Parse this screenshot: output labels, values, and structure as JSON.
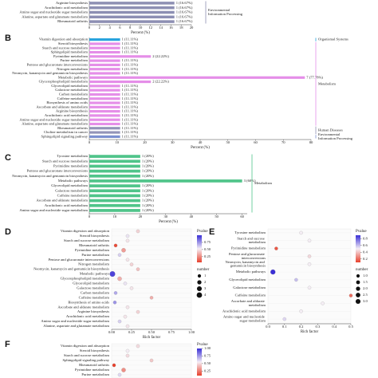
{
  "chart_data": [
    {
      "type": "bar",
      "orientation": "horizontal",
      "categories": [
        "Arginine biosynthesis",
        "Arachidonic acid metabolism",
        "Amino sugar and nucleotide sugar metabolism",
        "Alanine, aspartate and glutamate metabolism",
        "Rheumatoid arthritis"
      ],
      "series": [
        {
          "name": "Environmental Information Processing",
          "color": "#8d8fb3",
          "values": [
            16.67,
            16.67,
            16.67,
            16.67,
            16.67
          ],
          "value_labels": [
            "1 (16.67%)",
            "1 (16.67%)",
            "1 (16.67%)",
            "1 (16.67%)",
            "1 (16.67%)"
          ]
        }
      ],
      "xlim": [
        0,
        20
      ],
      "xticks": [
        0,
        2,
        4,
        6,
        8,
        10,
        12,
        14,
        16,
        18,
        20
      ],
      "xlabel": "Percent (%)"
    },
    {
      "type": "bar",
      "orientation": "horizontal",
      "title": "B",
      "categories": [
        "Vitamin digestion and absorption",
        "Steroid biosynthesis",
        "Starch and sucrose metabolism",
        "Sphingolipid metabolism",
        "Pyrimidine metabolism",
        "Purine metabolism",
        "Pentose and glucuronate interconversions",
        "Nitrogen metabolism",
        "Neomycin, kanamycin and gentamicin biosynthesis",
        "Metabolic pathways",
        "Glycerophospholipid metabolism",
        "Glycerolipid metabolism",
        "Galactose metabolism",
        "Carbon metabolism",
        "Caffeine metabolism",
        "Biosynthesis of amino acids",
        "Ascorbate and aldarate metabolism",
        "Arginine biosynthesis",
        "Arachidonic acid metabolism",
        "Amino sugar and nucleotide sugar metabolism",
        "Alanine, aspartate and glutamate metabolism",
        "Rheumatoid arthritis",
        "Choline metabolism in cancer",
        "Sphingolipid signaling pathway"
      ],
      "series": [
        {
          "name": "Organismal Systems",
          "color": "#27a3dd",
          "values": [
            11.11,
            null,
            null,
            null,
            null,
            null,
            null,
            null,
            null,
            null,
            null,
            null,
            null,
            null,
            null,
            null,
            null,
            null,
            null,
            null,
            null,
            null,
            null,
            null
          ],
          "value_labels": [
            "1 (11.11%)",
            null,
            null,
            null,
            null,
            null,
            null,
            null,
            null,
            null,
            null,
            null,
            null,
            null,
            null,
            null,
            null,
            null,
            null,
            null,
            null,
            null,
            null,
            null
          ]
        },
        {
          "name": "Metabolism",
          "color": "#e58ee8",
          "values": [
            null,
            11.11,
            11.11,
            11.11,
            22.22,
            11.11,
            11.11,
            11.11,
            11.11,
            77.78,
            22.22,
            11.11,
            11.11,
            11.11,
            11.11,
            11.11,
            11.11,
            11.11,
            11.11,
            11.11,
            11.11,
            null,
            null,
            null
          ],
          "value_labels": [
            null,
            "1 (11.11%)",
            "1 (11.11%)",
            "1 (11.11%)",
            "2 (22.22%)",
            "1 (11.11%)",
            "1 (11.11%)",
            "1 (11.11%)",
            "1 (11.11%)",
            "7 (77.78%)",
            "2 (22.22%)",
            "1 (11.11%)",
            "1 (11.11%)",
            "1 (11.11%)",
            "1 (11.11%)",
            "1 (11.11%)",
            "1 (11.11%)",
            "1 (11.11%)",
            "1 (11.11%)",
            "1 (11.11%)",
            "1 (11.11%)",
            null,
            null,
            null
          ]
        },
        {
          "name": "Human Diseases",
          "color": "#9394b8",
          "values": [
            null,
            null,
            null,
            null,
            null,
            null,
            null,
            null,
            null,
            null,
            null,
            null,
            null,
            null,
            null,
            null,
            null,
            null,
            null,
            null,
            null,
            11.11,
            11.11,
            null
          ],
          "value_labels": [
            null,
            null,
            null,
            null,
            null,
            null,
            null,
            null,
            null,
            null,
            null,
            null,
            null,
            null,
            null,
            null,
            null,
            null,
            null,
            null,
            null,
            "1 (11.11%)",
            "1 (11.11%)",
            null
          ]
        },
        {
          "name": "Environmental Information Processing",
          "color": "#7b8fd0",
          "values": [
            null,
            null,
            null,
            null,
            null,
            null,
            null,
            null,
            null,
            null,
            null,
            null,
            null,
            null,
            null,
            null,
            null,
            null,
            null,
            null,
            null,
            null,
            null,
            11.11
          ],
          "value_labels": [
            null,
            null,
            null,
            null,
            null,
            null,
            null,
            null,
            null,
            null,
            null,
            null,
            null,
            null,
            null,
            null,
            null,
            null,
            null,
            null,
            null,
            null,
            null,
            "1 (11.11%)"
          ]
        }
      ],
      "xlim": [
        0,
        80
      ],
      "xticks": [
        0,
        10,
        20,
        30,
        40,
        50,
        60,
        70,
        80
      ],
      "xlabel": "Percent (%)"
    },
    {
      "type": "bar",
      "orientation": "horizontal",
      "title": "C",
      "categories": [
        "Tyrosine metabolism",
        "Starch and sucrose metabolism",
        "Pyrimidine metabolism",
        "Pentose and glucuronate interconversions",
        "Neomycin, kanamycin and gentamicin biosynthesis",
        "Metabolic pathways",
        "Glycerolipid metabolism",
        "Galactose metabolism",
        "Caffeine metabolism",
        "Ascorbate and aldarate metabolism",
        "Arachidonic acid metabolism",
        "Amino sugar and nucleotide sugar metabolism"
      ],
      "series": [
        {
          "name": "Metabolism",
          "color": "#50c48a",
          "values": [
            20,
            20,
            20,
            20,
            20,
            60,
            20,
            20,
            20,
            20,
            20,
            20
          ],
          "value_labels": [
            "1 (20%)",
            "1 (20%)",
            "1 (20%)",
            "1 (20%)",
            "1 (20%)",
            "3 (60%)",
            "1 (20%)",
            "1 (20%)",
            "1 (20%)",
            "1 (20%)",
            "1 (20%)",
            "1 (20%)"
          ]
        }
      ],
      "xlim": [
        0,
        62
      ],
      "xticks": [
        0,
        10,
        20,
        30,
        40,
        50,
        60
      ],
      "xlabel": "Percent (%)"
    },
    {
      "type": "bubble",
      "title": "D",
      "categories": [
        "Vitamin digestion and absorption",
        "Steroid biosynthesis",
        "Starch and sucrose metabolism",
        "Rheumatoid arthritis",
        "Pyrimidine metabolism",
        "Purine metabolism",
        "Pentose and glucuronate interconversions",
        "Nitrogen metabolism",
        "Neomycin, kanamycin and gentamicin biosynthesis",
        "Metabolic pathways",
        "Glycerophospholipid metabolism",
        "Glycerolipid metabolism",
        "Galactose metabolism",
        "Carbon metabolism",
        "Caffeine metabolism",
        "Biosynthesis of amino acids",
        "Ascorbate and aldarate metabolism",
        "Arginine biosynthesis",
        "Arachidonic acid metabolism",
        "Amino sugar and nucleotide sugar metabolism",
        "Alanine, aspartate and glutamate metabolism"
      ],
      "x": [
        0.33,
        0.2,
        0.2,
        0.05,
        0.15,
        0.1,
        0.2,
        0.25,
        0.33,
        0.01,
        0.1,
        0.17,
        0.25,
        0.05,
        0.5,
        0.04,
        0.2,
        0.33,
        0.17,
        0.1,
        0.2
      ],
      "sizes": [
        1,
        1,
        1,
        1,
        2,
        1,
        1,
        1,
        1,
        4,
        2,
        1,
        1,
        1,
        1,
        1,
        1,
        1,
        1,
        1,
        1
      ],
      "pvalues": [
        0.45,
        0.55,
        0.5,
        0.08,
        0.3,
        0.6,
        0.5,
        0.45,
        0.4,
        0.95,
        0.35,
        0.55,
        0.5,
        0.7,
        0.35,
        0.75,
        0.5,
        0.45,
        0.5,
        0.6,
        0.5
      ],
      "xlim": [
        0,
        1
      ],
      "xticks": [
        {
          "value": 0,
          "label": "0.00"
        },
        0.25,
        {
          "value": 0.5,
          "label": "0.50"
        },
        0.75,
        {
          "value": 1,
          "label": "1.00"
        }
      ],
      "xlabel": "Rich factor",
      "pvalue_title": "Pvalue",
      "pvalue_lim": [
        0.05,
        1
      ],
      "pvalue_ticks": [
        0.75,
        {
          "value": 0.5,
          "label": "0.50"
        },
        0.25
      ],
      "size_title": "number",
      "size_ticks": [
        1,
        2,
        3,
        4
      ]
    },
    {
      "type": "bubble",
      "title": "E",
      "categories": [
        "Tyrosine metabolism",
        "Starch and sucrose metabolism",
        "Pyrimidine metabolism",
        "Pentose and glucuronate interconversions",
        "Neomycin, kanamycin and gentamicin biosynthesis",
        "Metabolic pathways",
        "Glycerolipid metabolism",
        "Galactose metabolism",
        "Caffeine metabolism",
        "Ascorbate and aldarate metabolism",
        "Arachidonic acid metabolism",
        "Amino sugar and nucleotide sugar metabolism"
      ],
      "x": [
        0.2,
        0.25,
        0.05,
        0.25,
        0.25,
        0.03,
        0.17,
        0.25,
        0.5,
        0.33,
        0.2,
        0.1
      ],
      "sizes": [
        1,
        1,
        1,
        1,
        1,
        3,
        1,
        1,
        1,
        1,
        1,
        1
      ],
      "pvalues": [
        0.5,
        0.5,
        0.15,
        0.45,
        0.5,
        0.9,
        0.6,
        0.5,
        0.2,
        0.5,
        0.5,
        0.55
      ],
      "xlim": [
        0,
        0.5
      ],
      "xticks": [
        {
          "value": 0,
          "label": "0.0"
        },
        0.1,
        0.2,
        0.3,
        0.4,
        0.5
      ],
      "xlabel": "Rich factor",
      "pvalue_title": "Pvalue",
      "pvalue_lim": [
        0.1,
        0.9
      ],
      "pvalue_ticks": [
        0.8,
        0.6,
        0.4,
        0.2
      ],
      "size_title": "number",
      "size_ticks": [
        {
          "value": 1,
          "label": "1.0"
        },
        1.5,
        {
          "value": 2,
          "label": "2.0"
        },
        2.5,
        {
          "value": 3,
          "label": "3.0"
        }
      ]
    },
    {
      "type": "bubble",
      "title": "F",
      "categories": [
        "Vitamin digestion and absorption",
        "Steroid biosynthesis",
        "Starch and sucrose metabolism",
        "Sphingolipid signaling pathway",
        "Rheumatoid arthritis",
        "Pyrimidine metabolism",
        "Purine metabolism"
      ],
      "x": [
        0.33,
        0.2,
        0.2,
        0.5,
        0.03,
        0.15,
        0.1
      ],
      "sizes": [
        1,
        1,
        1,
        1,
        1,
        2,
        1
      ],
      "pvalues": [
        0.5,
        0.55,
        0.5,
        0.45,
        0.1,
        0.3,
        0.6
      ],
      "xlim": [
        0,
        1
      ],
      "pvalue_title": "Pvalue",
      "pvalue_lim": [
        0.1,
        1
      ],
      "pvalue_ticks": [
        {
          "value": 1,
          "label": "1.00"
        },
        0.75,
        {
          "value": 0.5,
          "label": "0.50"
        },
        0.25
      ]
    }
  ]
}
